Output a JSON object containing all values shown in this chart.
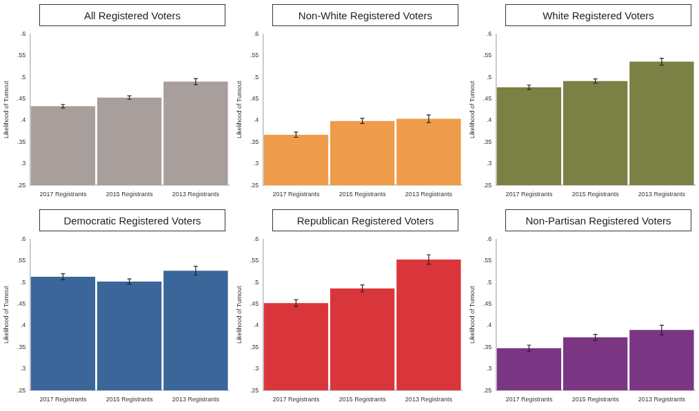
{
  "chart_data": [
    {
      "type": "bar",
      "title": "All Registered Voters",
      "ylabel": "Likelihood of Turnout",
      "categories": [
        "2017 Registrants",
        "2015 Registrants",
        "2013 Registrants"
      ],
      "values": [
        0.433,
        0.453,
        0.49
      ],
      "errors": [
        0.004,
        0.004,
        0.007
      ],
      "color": "#a89e9c",
      "ylim": [
        0.25,
        0.6
      ],
      "yticks": [
        {
          "value": 0.25,
          "label": ".25"
        },
        {
          "value": 0.3,
          "label": ".3"
        },
        {
          "value": 0.35,
          "label": ".35"
        },
        {
          "value": 0.4,
          "label": ".4"
        },
        {
          "value": 0.45,
          "label": ".45"
        },
        {
          "value": 0.5,
          "label": ".5"
        },
        {
          "value": 0.55,
          "label": ".55"
        },
        {
          "value": 0.6,
          "label": ".6"
        }
      ],
      "grid": false,
      "legend": false
    },
    {
      "type": "bar",
      "title": "Non-White Registered Voters",
      "ylabel": "Likelihood of Turnout",
      "categories": [
        "2017 Registrants",
        "2015 Registrants",
        "2013 Registrants"
      ],
      "values": [
        0.367,
        0.399,
        0.404
      ],
      "errors": [
        0.006,
        0.006,
        0.009
      ],
      "color": "#ee9c4b",
      "ylim": [
        0.25,
        0.6
      ],
      "yticks": [
        {
          "value": 0.25,
          "label": ".25"
        },
        {
          "value": 0.3,
          "label": ".3"
        },
        {
          "value": 0.35,
          "label": ".35"
        },
        {
          "value": 0.4,
          "label": ".4"
        },
        {
          "value": 0.45,
          "label": ".45"
        },
        {
          "value": 0.5,
          "label": ".5"
        },
        {
          "value": 0.55,
          "label": ".55"
        },
        {
          "value": 0.6,
          "label": ".6"
        }
      ],
      "grid": false,
      "legend": false
    },
    {
      "type": "bar",
      "title": "White Registered Voters",
      "ylabel": "Likelihood of Turnout",
      "categories": [
        "2017 Registrants",
        "2015 Registrants",
        "2013 Registrants"
      ],
      "values": [
        0.477,
        0.491,
        0.536
      ],
      "errors": [
        0.005,
        0.005,
        0.008
      ],
      "color": "#7b8044",
      "ylim": [
        0.25,
        0.6
      ],
      "yticks": [
        {
          "value": 0.25,
          "label": ".25"
        },
        {
          "value": 0.3,
          "label": ".3"
        },
        {
          "value": 0.35,
          "label": ".35"
        },
        {
          "value": 0.4,
          "label": ".4"
        },
        {
          "value": 0.45,
          "label": ".45"
        },
        {
          "value": 0.5,
          "label": ".5"
        },
        {
          "value": 0.55,
          "label": ".55"
        },
        {
          "value": 0.6,
          "label": ".6"
        }
      ],
      "grid": false,
      "legend": false
    },
    {
      "type": "bar",
      "title": "Democratic Registered Voters",
      "ylabel": "Likelihood of Turnout",
      "categories": [
        "2017 Registrants",
        "2015 Registrants",
        "2013 Registrants"
      ],
      "values": [
        0.513,
        0.502,
        0.527
      ],
      "errors": [
        0.007,
        0.006,
        0.01
      ],
      "color": "#3a6699",
      "ylim": [
        0.25,
        0.6
      ],
      "yticks": [
        {
          "value": 0.25,
          "label": ".25"
        },
        {
          "value": 0.3,
          "label": ".3"
        },
        {
          "value": 0.35,
          "label": ".35"
        },
        {
          "value": 0.4,
          "label": ".4"
        },
        {
          "value": 0.45,
          "label": ".45"
        },
        {
          "value": 0.5,
          "label": ".5"
        },
        {
          "value": 0.55,
          "label": ".55"
        },
        {
          "value": 0.6,
          "label": ".6"
        }
      ],
      "grid": false,
      "legend": false
    },
    {
      "type": "bar",
      "title": "Republican Registered Voters",
      "ylabel": "Likelihood of Turnout",
      "categories": [
        "2017 Registrants",
        "2015 Registrants",
        "2013 Registrants"
      ],
      "values": [
        0.452,
        0.486,
        0.553
      ],
      "errors": [
        0.008,
        0.008,
        0.011
      ],
      "color": "#d9363c",
      "ylim": [
        0.25,
        0.6
      ],
      "yticks": [
        {
          "value": 0.25,
          "label": ".25"
        },
        {
          "value": 0.3,
          "label": ".3"
        },
        {
          "value": 0.35,
          "label": ".35"
        },
        {
          "value": 0.4,
          "label": ".4"
        },
        {
          "value": 0.45,
          "label": ".45"
        },
        {
          "value": 0.5,
          "label": ".5"
        },
        {
          "value": 0.55,
          "label": ".55"
        },
        {
          "value": 0.6,
          "label": ".6"
        }
      ],
      "grid": false,
      "legend": false
    },
    {
      "type": "bar",
      "title": "Non-Partisan Registered Voters",
      "ylabel": "Likelihood of Turnout",
      "categories": [
        "2017 Registrants",
        "2015 Registrants",
        "2013 Registrants"
      ],
      "values": [
        0.348,
        0.373,
        0.39
      ],
      "errors": [
        0.007,
        0.007,
        0.011
      ],
      "color": "#7a3682",
      "ylim": [
        0.25,
        0.6
      ],
      "yticks": [
        {
          "value": 0.25,
          "label": ".25"
        },
        {
          "value": 0.3,
          "label": ".3"
        },
        {
          "value": 0.35,
          "label": ".35"
        },
        {
          "value": 0.4,
          "label": ".4"
        },
        {
          "value": 0.45,
          "label": ".45"
        },
        {
          "value": 0.5,
          "label": ".5"
        },
        {
          "value": 0.55,
          "label": ".55"
        },
        {
          "value": 0.6,
          "label": ".6"
        }
      ],
      "grid": false,
      "legend": false
    }
  ]
}
